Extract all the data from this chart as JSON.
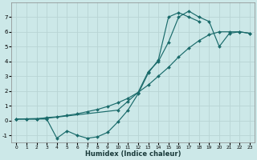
{
  "xlabel": "Humidex (Indice chaleur)",
  "bg_color": "#cce8e8",
  "grid_color": "#b8d4d4",
  "line_color": "#1a6b6b",
  "xlim": [
    -0.5,
    23.5
  ],
  "ylim": [
    -1.5,
    8.0
  ],
  "yticks": [
    -1,
    0,
    1,
    2,
    3,
    4,
    5,
    6,
    7
  ],
  "xticks": [
    0,
    1,
    2,
    3,
    4,
    5,
    6,
    7,
    8,
    9,
    10,
    11,
    12,
    13,
    14,
    15,
    16,
    17,
    18,
    19,
    20,
    21,
    22,
    23
  ],
  "curve1_x": [
    0,
    1,
    2,
    3,
    4,
    5,
    6,
    7,
    8,
    9,
    10,
    11,
    12,
    13,
    14,
    15,
    16,
    17,
    18
  ],
  "curve1_y": [
    0.1,
    0.1,
    0.1,
    0.1,
    -1.2,
    -0.7,
    -1.0,
    -1.2,
    -1.1,
    -0.8,
    -0.1,
    0.7,
    1.8,
    3.2,
    4.1,
    7.0,
    7.3,
    7.0,
    6.7
  ],
  "curve2_x": [
    0,
    1,
    2,
    3,
    4,
    5,
    6,
    7,
    8,
    9,
    10,
    11,
    12,
    13,
    14,
    15,
    16,
    17,
    18,
    19,
    20,
    21,
    22,
    23
  ],
  "curve2_y": [
    0.1,
    0.1,
    0.1,
    0.2,
    0.25,
    0.35,
    0.45,
    0.6,
    0.75,
    0.95,
    1.2,
    1.5,
    1.9,
    2.4,
    3.0,
    3.6,
    4.3,
    4.9,
    5.4,
    5.8,
    6.0,
    6.0,
    6.0,
    5.9
  ],
  "curve3_x": [
    0,
    3,
    10,
    11,
    12,
    13,
    14,
    15,
    16,
    17,
    18,
    19,
    20,
    21,
    22,
    23
  ],
  "curve3_y": [
    0.1,
    0.15,
    0.7,
    1.3,
    1.9,
    3.3,
    4.0,
    5.3,
    7.0,
    7.4,
    7.0,
    6.7,
    5.0,
    5.9,
    6.0,
    5.9
  ]
}
